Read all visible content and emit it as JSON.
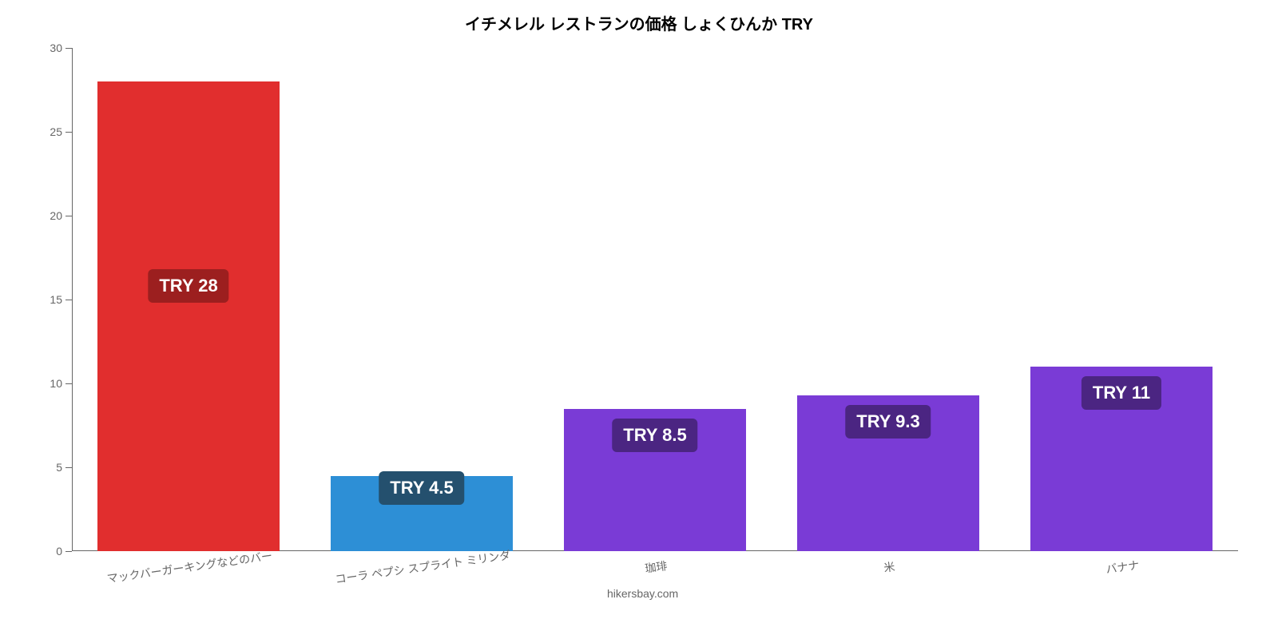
{
  "chart": {
    "type": "bar",
    "title": "イチメレル レストランの価格 しょくひんか TRY",
    "title_fontsize": 20,
    "background_color": "#ffffff",
    "axis_color": "#666666",
    "ylim": [
      0,
      30
    ],
    "ytick_step": 5,
    "yticks": [
      0,
      5,
      10,
      15,
      20,
      25,
      30
    ],
    "tick_label_color": "#666666",
    "tick_label_fontsize": 14,
    "bar_width_ratio": 0.78,
    "xlabel_rotation_deg": -8,
    "categories": [
      "マックバーガーキングなどのバー",
      "コーラ ペプシ スプライト ミリンダ",
      "珈琲",
      "米",
      "バナナ"
    ],
    "values": [
      28,
      4.5,
      8.5,
      9.3,
      11
    ],
    "bar_colors": [
      "#e12e2e",
      "#2d8fd6",
      "#7a3bd6",
      "#7a3bd6",
      "#7a3bd6"
    ],
    "value_labels": [
      "TRY 28",
      "TRY 4.5",
      "TRY 8.5",
      "TRY 9.3",
      "TRY 11"
    ],
    "value_label_bg": [
      "#9c1f1f",
      "#24506e",
      "#4b2582",
      "#4b2582",
      "#4b2582"
    ],
    "value_label_fontsize": 22,
    "attribution": "hikersbay.com"
  }
}
